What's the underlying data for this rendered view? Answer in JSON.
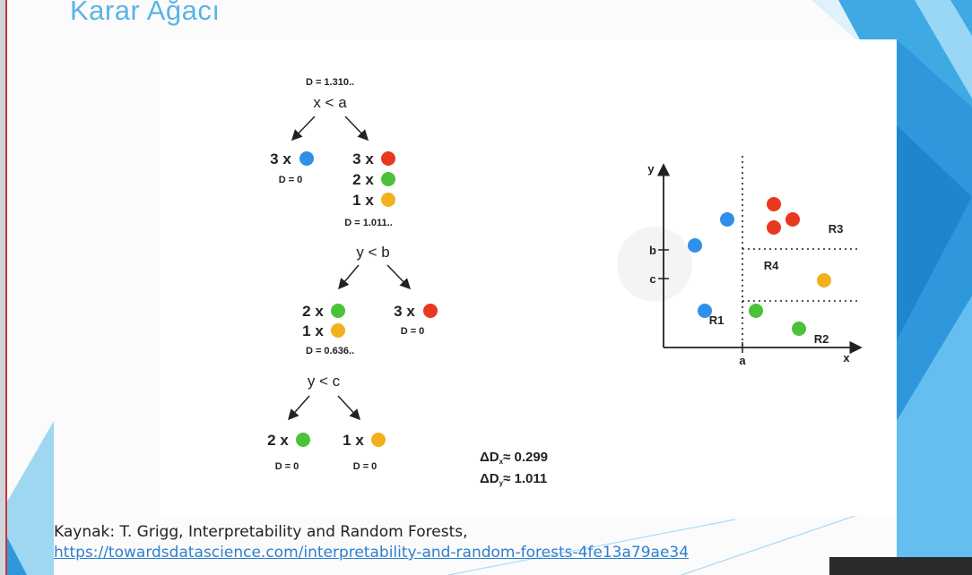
{
  "slide": {
    "title": "Karar Ağacı",
    "source_prefix": "Kaynak: T. Grigg, Interpretability and Random Forests,",
    "source_link": "https://towardsdatascience.com/interpretability-and-random-forests-4fe13a79ae34"
  },
  "colors": {
    "blue": "#2f8fea",
    "red": "#e8381f",
    "green": "#4cc13a",
    "orange": "#f2b01e",
    "title_blue": "#5ab4e6",
    "link": "#2f7fd0"
  },
  "tree": {
    "root": {
      "impurity": "D = 1.310..",
      "split": "x < a"
    },
    "left_leaf": {
      "count": "3 x",
      "color": "blue",
      "impurity": "D = 0"
    },
    "right_node": {
      "rows": [
        {
          "count": "3 x",
          "color": "red"
        },
        {
          "count": "2 x",
          "color": "green"
        },
        {
          "count": "1 x",
          "color": "orange"
        }
      ],
      "impurity": "D = 1.011..",
      "split": "y < b"
    },
    "level2_left": {
      "rows": [
        {
          "count": "2 x",
          "color": "green"
        },
        {
          "count": "1 x",
          "color": "orange"
        }
      ],
      "impurity": "D = 0.636..",
      "split": "y < c"
    },
    "level2_right": {
      "count": "3 x",
      "color": "red",
      "impurity": "D = 0"
    },
    "level3_left": {
      "count": "2 x",
      "color": "green",
      "impurity": "D = 0"
    },
    "level3_right": {
      "count": "1 x",
      "color": "orange",
      "impurity": "D = 0"
    },
    "delta_x": {
      "symbol": "ΔD",
      "sub": "x",
      "value": "≈ 0.299"
    },
    "delta_y": {
      "symbol": "ΔD",
      "sub": "y",
      "value": "≈ 1.011"
    }
  },
  "plot": {
    "x_label": "x",
    "y_label": "y",
    "tick_a": "a",
    "tick_b": "b",
    "tick_c": "c",
    "regions": [
      "R1",
      "R2",
      "R3",
      "R4"
    ]
  }
}
